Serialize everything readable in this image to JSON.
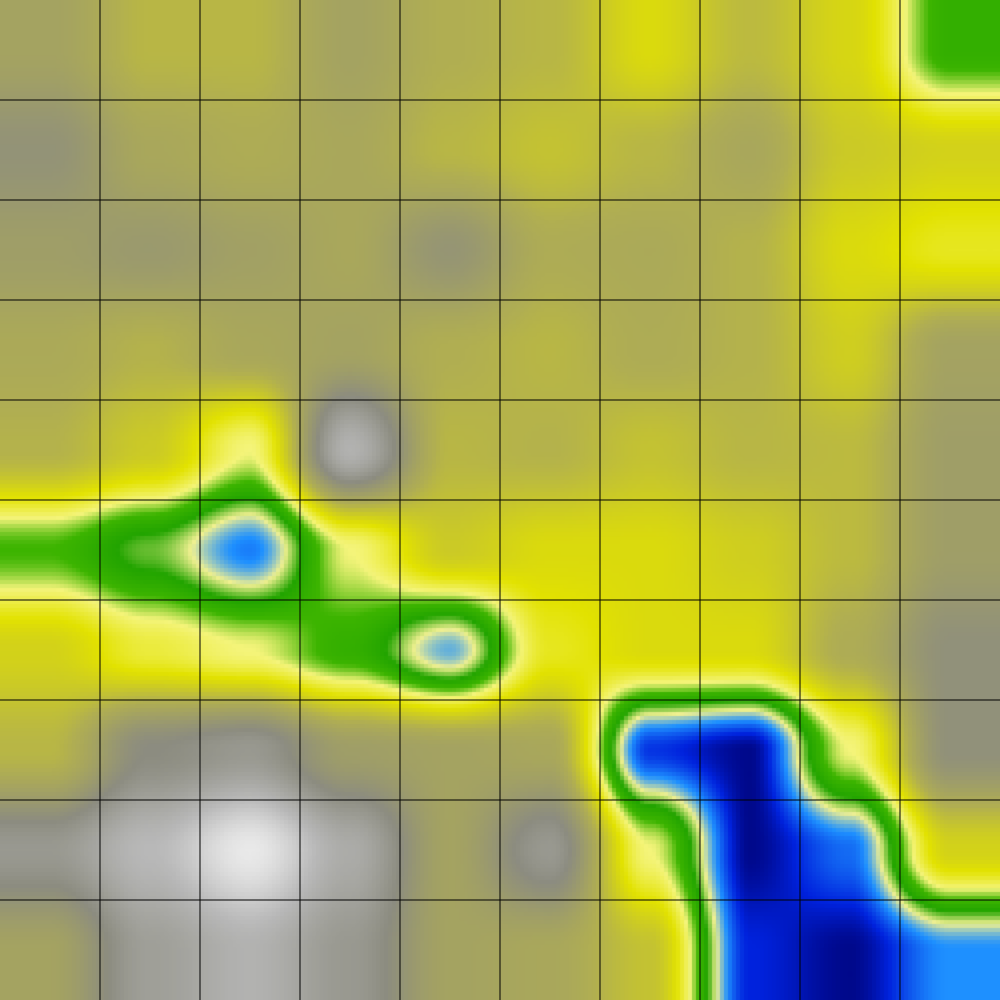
{
  "map": {
    "grid": {
      "rows": 10,
      "cols": 10,
      "line_color": "#000000"
    },
    "color_ramp": [
      {
        "stop": 0.0,
        "color": "#ffffff"
      },
      {
        "stop": 0.16,
        "color": "#b8b8b8"
      },
      {
        "stop": 0.3,
        "color": "#8c8c80"
      },
      {
        "stop": 0.45,
        "color": "#b0ae52"
      },
      {
        "stop": 0.58,
        "color": "#e2e200"
      },
      {
        "stop": 0.66,
        "color": "#f4f47a"
      },
      {
        "stop": 0.72,
        "color": "#3cb400"
      },
      {
        "stop": 0.78,
        "color": "#22a400"
      },
      {
        "stop": 0.84,
        "color": "#f0f090"
      },
      {
        "stop": 0.9,
        "color": "#1e90ff"
      },
      {
        "stop": 0.96,
        "color": "#0022dd"
      },
      {
        "stop": 1.0,
        "color": "#000070"
      }
    ],
    "field_values": [
      [
        0.4,
        0.47,
        0.47,
        0.4,
        0.45,
        0.47,
        0.56,
        0.48,
        0.55,
        0.74
      ],
      [
        0.33,
        0.42,
        0.44,
        0.42,
        0.47,
        0.5,
        0.47,
        0.42,
        0.52,
        0.54
      ],
      [
        0.38,
        0.36,
        0.39,
        0.42,
        0.34,
        0.44,
        0.43,
        0.46,
        0.56,
        0.6
      ],
      [
        0.43,
        0.46,
        0.42,
        0.4,
        0.45,
        0.47,
        0.44,
        0.46,
        0.53,
        0.4
      ],
      [
        0.46,
        0.52,
        0.66,
        0.18,
        0.47,
        0.46,
        0.5,
        0.47,
        0.48,
        0.38
      ],
      [
        0.72,
        0.8,
        0.91,
        0.66,
        0.52,
        0.56,
        0.56,
        0.53,
        0.48,
        0.38
      ],
      [
        0.54,
        0.62,
        0.66,
        0.74,
        0.88,
        0.6,
        0.56,
        0.56,
        0.44,
        0.32
      ],
      [
        0.47,
        0.3,
        0.26,
        0.38,
        0.4,
        0.42,
        0.95,
        0.99,
        0.66,
        0.32
      ],
      [
        0.26,
        0.16,
        0.05,
        0.2,
        0.4,
        0.26,
        0.66,
        0.99,
        0.92,
        0.54
      ],
      [
        0.4,
        0.24,
        0.18,
        0.26,
        0.4,
        0.42,
        0.5,
        0.96,
        0.99,
        0.9
      ]
    ]
  }
}
